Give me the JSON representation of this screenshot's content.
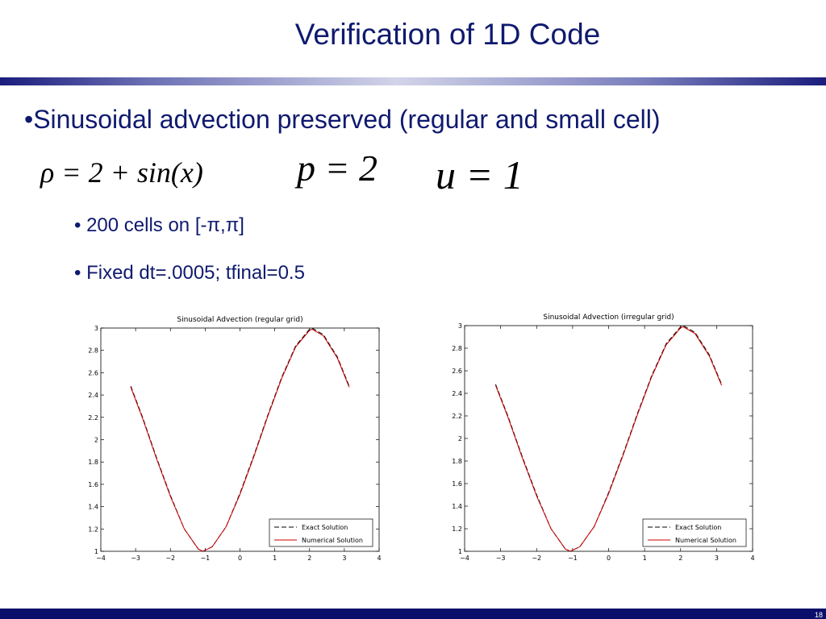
{
  "slide": {
    "title": "Verification of 1D Code",
    "bullet": "•Sinusoidal advection preserved (regular and small cell)",
    "formulas": {
      "rho": "ρ = 2 + sin(x)",
      "p": "p = 2",
      "u": "u = 1"
    },
    "sub_bullets": [
      "• 200 cells on  [-π,π]",
      "• Fixed dt=.0005; tfinal=0.5"
    ],
    "page_number": "18"
  },
  "colors": {
    "title": "#0f1a6e",
    "footer": "#0b0f6b",
    "exact_line": "#000000",
    "numerical_line": "#cc0000"
  },
  "chart_data": [
    {
      "type": "line",
      "title": "Sinusoidal Advection (regular grid)",
      "xlim": [
        -4,
        4
      ],
      "ylim": [
        1,
        3
      ],
      "xticks": [
        -4,
        -3,
        -2,
        -1,
        0,
        1,
        2,
        3,
        4
      ],
      "yticks": [
        1,
        1.2,
        1.4,
        1.6,
        1.8,
        2,
        2.2,
        2.4,
        2.6,
        2.8,
        3
      ],
      "xticklabels": [
        "−4",
        "−3",
        "−2",
        "−1",
        "0",
        "1",
        "2",
        "3",
        "4"
      ],
      "yticklabels": [
        "1",
        "1.2",
        "1.4",
        "1.6",
        "1.8",
        "2",
        "2.2",
        "2.4",
        "2.6",
        "2.8",
        "3"
      ],
      "legend_position": "bottom-right",
      "series": [
        {
          "name": "Exact Solution",
          "style": "dashed",
          "x": [
            -3.14,
            -2.8,
            -2.4,
            -2.0,
            -1.6,
            -1.2,
            -1.07,
            -0.8,
            -0.4,
            0.0,
            0.4,
            0.8,
            1.2,
            1.6,
            2.0,
            2.07,
            2.4,
            2.8,
            3.14
          ],
          "y": [
            2.48,
            2.2,
            1.84,
            1.5,
            1.2,
            1.02,
            1.0,
            1.04,
            1.22,
            1.52,
            1.86,
            2.22,
            2.56,
            2.84,
            2.99,
            3.0,
            2.94,
            2.74,
            2.48
          ]
        },
        {
          "name": "Numerical Solution",
          "style": "solid",
          "x": [
            -3.14,
            -2.8,
            -2.4,
            -2.0,
            -1.6,
            -1.2,
            -1.07,
            -0.8,
            -0.4,
            0.0,
            0.4,
            0.8,
            1.2,
            1.6,
            2.0,
            2.07,
            2.4,
            2.8,
            3.14
          ],
          "y": [
            2.47,
            2.19,
            1.83,
            1.49,
            1.2,
            1.02,
            1.0,
            1.04,
            1.22,
            1.51,
            1.85,
            2.21,
            2.55,
            2.83,
            2.98,
            2.99,
            2.93,
            2.73,
            2.47
          ]
        }
      ]
    },
    {
      "type": "line",
      "title": "Sinusoidal Advection (irregular grid)",
      "xlim": [
        -4,
        4
      ],
      "ylim": [
        1,
        3
      ],
      "xticks": [
        -4,
        -3,
        -2,
        -1,
        0,
        1,
        2,
        3,
        4
      ],
      "yticks": [
        1,
        1.2,
        1.4,
        1.6,
        1.8,
        2,
        2.2,
        2.4,
        2.6,
        2.8,
        3
      ],
      "xticklabels": [
        "−4",
        "−3",
        "−2",
        "−1",
        "0",
        "1",
        "2",
        "3",
        "4"
      ],
      "yticklabels": [
        "1",
        "1.2",
        "1.4",
        "1.6",
        "1.8",
        "2",
        "2.2",
        "2.4",
        "2.6",
        "2.8",
        "3"
      ],
      "legend_position": "bottom-right",
      "series": [
        {
          "name": "Exact Solution",
          "style": "dashed",
          "x": [
            -3.14,
            -2.8,
            -2.4,
            -2.0,
            -1.6,
            -1.2,
            -1.07,
            -0.8,
            -0.4,
            0.0,
            0.4,
            0.8,
            1.2,
            1.6,
            2.0,
            2.07,
            2.4,
            2.8,
            3.14
          ],
          "y": [
            2.48,
            2.2,
            1.84,
            1.5,
            1.2,
            1.02,
            1.0,
            1.04,
            1.22,
            1.52,
            1.86,
            2.22,
            2.56,
            2.84,
            2.99,
            3.0,
            2.94,
            2.74,
            2.48
          ]
        },
        {
          "name": "Numerical Solution",
          "style": "solid",
          "x": [
            -3.14,
            -2.8,
            -2.4,
            -2.0,
            -1.6,
            -1.2,
            -1.07,
            -0.8,
            -0.4,
            0.0,
            0.4,
            0.8,
            1.2,
            1.6,
            2.0,
            2.07,
            2.4,
            2.8,
            3.14
          ],
          "y": [
            2.47,
            2.19,
            1.83,
            1.49,
            1.2,
            1.02,
            1.0,
            1.04,
            1.22,
            1.51,
            1.85,
            2.21,
            2.55,
            2.83,
            2.98,
            2.99,
            2.93,
            2.73,
            2.47
          ]
        }
      ]
    }
  ]
}
